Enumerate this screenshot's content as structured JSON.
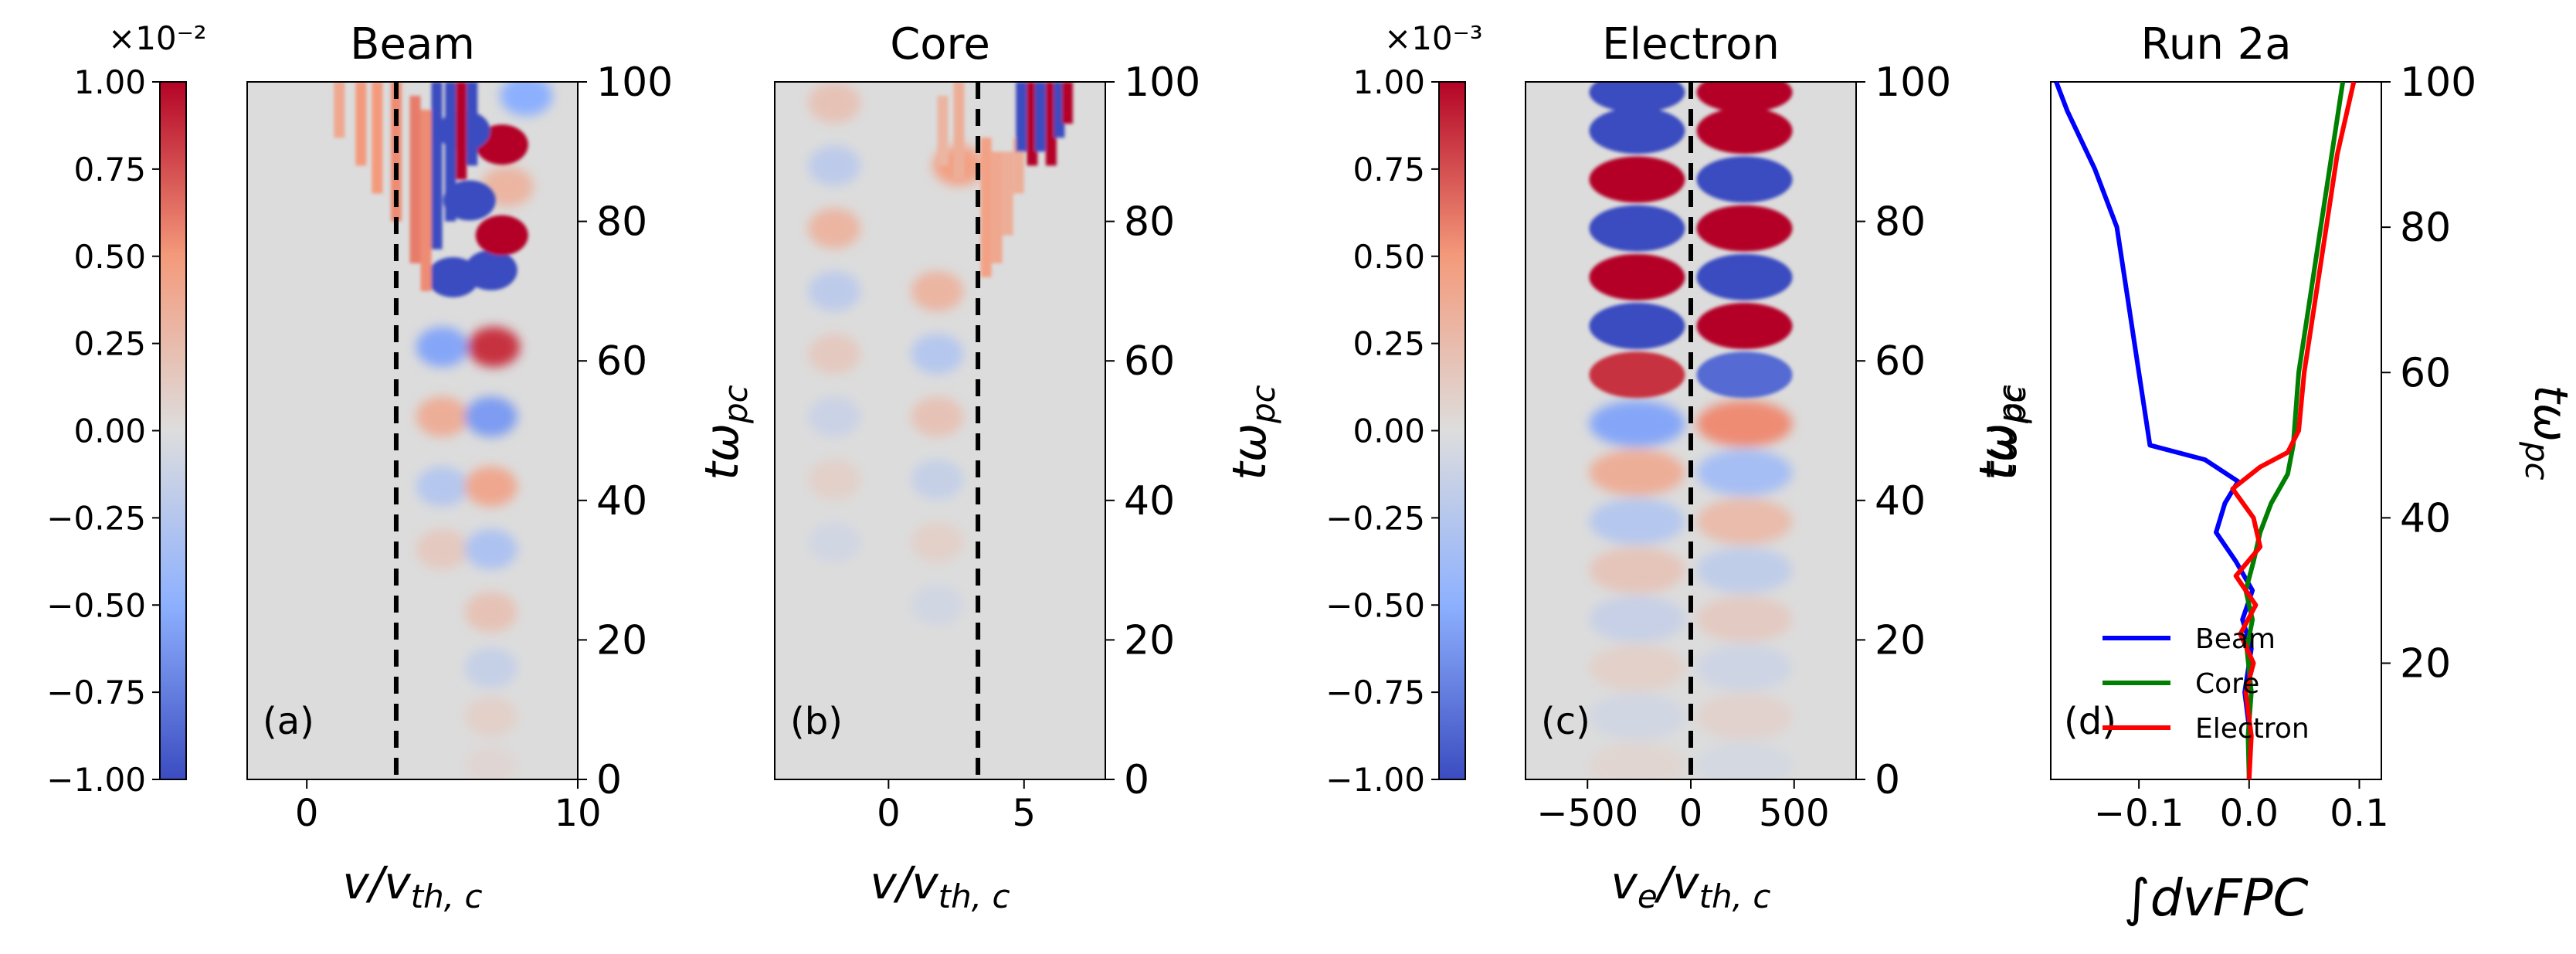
{
  "colors": {
    "background": "#dcdcdc",
    "blue": "#3b4cc0",
    "red": "#b40426",
    "dash": "#000000"
  },
  "chart_data": [
    {
      "type": "heatmap",
      "panel_label": "(a)",
      "title": "Beam",
      "xlabel": "v/v_th,c",
      "ylabel": "tω_pc",
      "xlim": [
        -2.2,
        10
      ],
      "ylim": [
        0,
        100
      ],
      "xticks": [
        "0",
        "10"
      ],
      "xtick_values": [
        0,
        10
      ],
      "yticks": [
        "0",
        "20",
        "40",
        "60",
        "80",
        "100"
      ],
      "dashed_line_x": 3.3,
      "colorbar": {
        "range": [
          -1.0,
          1.0
        ],
        "scale_label": "×10⁻²",
        "ticks": [
          "1.00",
          "0.75",
          "0.50",
          "0.25",
          "0.00",
          "−0.25",
          "−0.50",
          "−0.75",
          "−1.00"
        ]
      },
      "blobs": [
        {
          "x": 5.0,
          "t": 62,
          "v": -0.55
        },
        {
          "x": 6.9,
          "t": 62,
          "v": 0.85
        },
        {
          "x": 5.0,
          "t": 52,
          "v": 0.35
        },
        {
          "x": 6.8,
          "t": 52,
          "v": -0.6
        },
        {
          "x": 5.0,
          "t": 42,
          "v": -0.25
        },
        {
          "x": 6.8,
          "t": 42,
          "v": 0.4
        },
        {
          "x": 5.0,
          "t": 33,
          "v": 0.15
        },
        {
          "x": 6.8,
          "t": 33,
          "v": -0.3
        },
        {
          "x": 6.8,
          "t": 24,
          "v": 0.2
        },
        {
          "x": 6.8,
          "t": 16,
          "v": -0.15
        },
        {
          "x": 6.8,
          "t": 9,
          "v": 0.1
        },
        {
          "x": 6.8,
          "t": 2,
          "v": 0.05
        },
        {
          "x": 5.4,
          "t": 72,
          "v": -1.0
        },
        {
          "x": 6.8,
          "t": 73,
          "v": -1.0
        },
        {
          "x": 7.2,
          "t": 78,
          "v": 1.0
        },
        {
          "x": 6.0,
          "t": 83,
          "v": -1.0
        },
        {
          "x": 7.4,
          "t": 85,
          "v": 0.3
        },
        {
          "x": 7.2,
          "t": 91,
          "v": 1.0
        },
        {
          "x": 5.8,
          "t": 93,
          "v": -1.0
        },
        {
          "x": 8.1,
          "t": 98,
          "v": -0.5
        }
      ],
      "streaks": [
        {
          "x": 1.2,
          "t0": 92,
          "t1": 100,
          "v": 0.4
        },
        {
          "x": 2.0,
          "t0": 88,
          "t1": 100,
          "v": 0.5
        },
        {
          "x": 2.6,
          "t0": 84,
          "t1": 100,
          "v": 0.5
        },
        {
          "x": 3.3,
          "t0": 80,
          "t1": 100,
          "v": 0.55
        },
        {
          "x": 4.0,
          "t0": 74,
          "t1": 98,
          "v": 0.6
        },
        {
          "x": 4.4,
          "t0": 70,
          "t1": 96,
          "v": 0.55
        },
        {
          "x": 4.8,
          "t0": 76,
          "t1": 100,
          "v": -1.0
        },
        {
          "x": 5.3,
          "t0": 80,
          "t1": 100,
          "v": -1.0
        },
        {
          "x": 5.7,
          "t0": 86,
          "t1": 100,
          "v": 1.0
        },
        {
          "x": 6.1,
          "t0": 88,
          "t1": 100,
          "v": -1.0
        }
      ]
    },
    {
      "type": "heatmap",
      "panel_label": "(b)",
      "title": "Core",
      "xlabel": "v/v_th,c",
      "ylabel": "tω_pc",
      "xlim": [
        -4.2,
        8.0
      ],
      "ylim": [
        0,
        100
      ],
      "xticks": [
        "0",
        "5"
      ],
      "xtick_values": [
        0,
        5
      ],
      "yticks": [
        "0",
        "20",
        "40",
        "60",
        "80",
        "100"
      ],
      "dashed_line_x": 3.3,
      "blobs": [
        {
          "x": -2.0,
          "t": 97,
          "v": 0.2
        },
        {
          "x": -2.0,
          "t": 88,
          "v": -0.2
        },
        {
          "x": -2.0,
          "t": 79,
          "v": 0.3
        },
        {
          "x": -2.0,
          "t": 70,
          "v": -0.2
        },
        {
          "x": -2.0,
          "t": 61,
          "v": 0.15
        },
        {
          "x": -2.0,
          "t": 52,
          "v": -0.12
        },
        {
          "x": -2.0,
          "t": 43,
          "v": 0.1
        },
        {
          "x": -2.0,
          "t": 34,
          "v": -0.08
        },
        {
          "x": 1.8,
          "t": 70,
          "v": 0.3
        },
        {
          "x": 1.8,
          "t": 61,
          "v": -0.25
        },
        {
          "x": 1.8,
          "t": 52,
          "v": 0.2
        },
        {
          "x": 1.8,
          "t": 43,
          "v": -0.15
        },
        {
          "x": 1.8,
          "t": 34,
          "v": 0.1
        },
        {
          "x": 1.8,
          "t": 25,
          "v": -0.08
        },
        {
          "x": 2.6,
          "t": 88,
          "v": 0.45
        }
      ],
      "streaks": [
        {
          "x": 2.0,
          "t0": 88,
          "t1": 98,
          "v": 0.3
        },
        {
          "x": 2.6,
          "t0": 86,
          "t1": 100,
          "v": 0.35
        },
        {
          "x": 3.6,
          "t0": 72,
          "t1": 92,
          "v": 0.45
        },
        {
          "x": 4.0,
          "t0": 74,
          "t1": 90,
          "v": 0.4
        },
        {
          "x": 4.4,
          "t0": 78,
          "t1": 90,
          "v": 0.35
        },
        {
          "x": 4.8,
          "t0": 84,
          "t1": 92,
          "v": 0.35
        },
        {
          "x": 4.9,
          "t0": 90,
          "t1": 100,
          "v": -1.0
        },
        {
          "x": 5.3,
          "t0": 88,
          "t1": 100,
          "v": 1.0
        },
        {
          "x": 5.6,
          "t0": 90,
          "t1": 100,
          "v": -1.0
        },
        {
          "x": 6.0,
          "t0": 88,
          "t1": 100,
          "v": 1.0
        },
        {
          "x": 6.3,
          "t0": 92,
          "t1": 100,
          "v": -1.0
        },
        {
          "x": 6.6,
          "t0": 94,
          "t1": 100,
          "v": 1.0
        }
      ]
    },
    {
      "type": "heatmap",
      "panel_label": "(c)",
      "title": "Electron",
      "xlabel": "v_e/v_th,c",
      "ylabel": "tω_pc",
      "xlim": [
        -800,
        800
      ],
      "ylim": [
        0,
        100
      ],
      "xticks": [
        "−500",
        "0",
        "500"
      ],
      "xtick_values": [
        -500,
        0,
        500
      ],
      "yticks": [
        "0",
        "20",
        "40",
        "60",
        "80",
        "100"
      ],
      "dashed_line_x": 0,
      "colorbar": {
        "range": [
          -1.0,
          1.0
        ],
        "scale_label": "×10⁻³",
        "ticks": [
          "1.00",
          "0.75",
          "0.50",
          "0.25",
          "0.00",
          "−0.25",
          "−0.50",
          "−0.75",
          "−1.00"
        ]
      },
      "columns": [
        {
          "x": -260,
          "values": [
            0.06,
            -0.08,
            0.1,
            -0.14,
            0.18,
            -0.25,
            0.35,
            -0.55,
            0.85,
            -1.0,
            1.0,
            -1.0,
            1.0,
            -1.0
          ]
        },
        {
          "x": 260,
          "values": [
            -0.06,
            0.08,
            -0.1,
            0.14,
            -0.18,
            0.25,
            -0.35,
            0.55,
            -0.85,
            1.0,
            -1.0,
            1.0,
            -1.0,
            1.0
          ]
        }
      ],
      "rows_t": [
        2,
        9,
        16,
        23,
        30,
        37,
        44,
        51,
        58,
        65,
        72,
        79,
        86,
        93
      ],
      "top_row": {
        "t": 98.5,
        "values": [
          -1.0,
          1.0
        ]
      }
    },
    {
      "type": "line",
      "panel_label": "(d)",
      "title": "Run 2a",
      "xlabel": "∫dvFPC",
      "ylabel": "tω_pc",
      "xlim": [
        -0.18,
        0.12
      ],
      "ylim": [
        4,
        100
      ],
      "xticks": [
        "−0.1",
        "0.0",
        "0.1"
      ],
      "xtick_values": [
        -0.1,
        0.0,
        0.1
      ],
      "yticks": [
        "20",
        "40",
        "60",
        "80",
        "100"
      ],
      "ytick_values": [
        20,
        40,
        60,
        80,
        100
      ],
      "legend": [
        "Beam",
        "Core",
        "Electron"
      ],
      "series": [
        {
          "name": "Beam",
          "color": "#0000ff",
          "points": [
            [
              0,
              4
            ],
            [
              0.001,
              10
            ],
            [
              -0.004,
              16
            ],
            [
              0.002,
              22
            ],
            [
              -0.006,
              26
            ],
            [
              0.003,
              30
            ],
            [
              -0.012,
              34
            ],
            [
              -0.03,
              38
            ],
            [
              -0.022,
              42
            ],
            [
              -0.01,
              45
            ],
            [
              -0.04,
              48
            ],
            [
              -0.09,
              50
            ],
            [
              -0.1,
              60
            ],
            [
              -0.11,
              70
            ],
            [
              -0.12,
              80
            ],
            [
              -0.14,
              88
            ],
            [
              -0.165,
              96
            ],
            [
              -0.175,
              100
            ]
          ]
        },
        {
          "name": "Core",
          "color": "#008000",
          "points": [
            [
              0,
              4
            ],
            [
              -0.001,
              10
            ],
            [
              0.002,
              16
            ],
            [
              -0.002,
              22
            ],
            [
              0.003,
              26
            ],
            [
              -0.003,
              30
            ],
            [
              0.004,
              34
            ],
            [
              0.01,
              38
            ],
            [
              0.02,
              42
            ],
            [
              0.035,
              46
            ],
            [
              0.04,
              50
            ],
            [
              0.045,
              60
            ],
            [
              0.055,
              70
            ],
            [
              0.065,
              80
            ],
            [
              0.075,
              90
            ],
            [
              0.085,
              100
            ]
          ]
        },
        {
          "name": "Electron",
          "color": "#ff0000",
          "points": [
            [
              0,
              4
            ],
            [
              0.002,
              10
            ],
            [
              -0.003,
              16
            ],
            [
              0.004,
              20
            ],
            [
              -0.008,
              24
            ],
            [
              0.006,
              28
            ],
            [
              -0.012,
              32
            ],
            [
              0.01,
              36
            ],
            [
              0.004,
              40
            ],
            [
              -0.015,
              44
            ],
            [
              0.01,
              47
            ],
            [
              0.035,
              49
            ],
            [
              0.045,
              52
            ],
            [
              0.05,
              60
            ],
            [
              0.06,
              70
            ],
            [
              0.07,
              80
            ],
            [
              0.08,
              90
            ],
            [
              0.095,
              100
            ]
          ]
        }
      ]
    }
  ]
}
